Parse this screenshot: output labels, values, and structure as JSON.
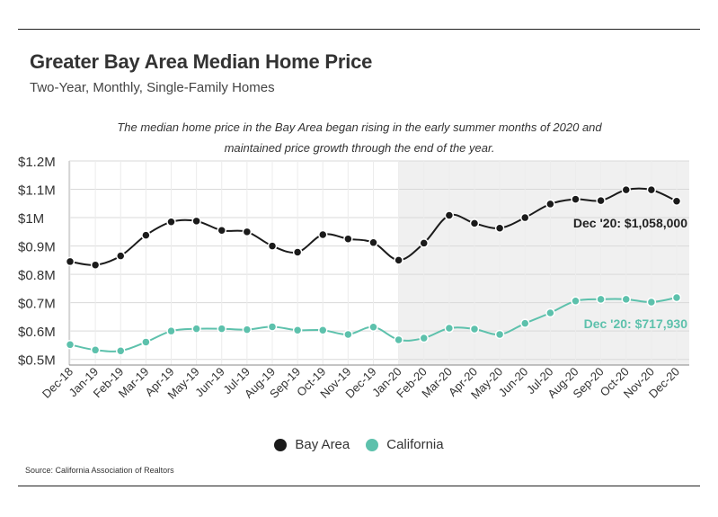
{
  "title": "Greater Bay Area Median Home Price",
  "subtitle": "Two-Year, Monthly, Single-Family Homes",
  "annotation_lines": [
    "The median home price in the Bay Area began rising in the early summer months of 2020 and",
    "maintained price growth through the end of the year."
  ],
  "source": "Source:  California Association of Realtors",
  "colors": {
    "bay_area": "#1b1b1b",
    "california": "#5dc1ac",
    "shade": "#f0f0f0",
    "grid": "#d9d9d9"
  },
  "chart_data": {
    "type": "line",
    "x": [
      "Dec-18",
      "Jan-19",
      "Feb-19",
      "Mar-19",
      "Apr-19",
      "May-19",
      "Jun-19",
      "Jul-19",
      "Aug-19",
      "Sep-19",
      "Oct-19",
      "Nov-19",
      "Dec-19",
      "Jan-20",
      "Feb-20",
      "Mar-20",
      "Apr-20",
      "May-20",
      "Jun-20",
      "Jul-20",
      "Aug-20",
      "Sep-20",
      "Oct-20",
      "Nov-20",
      "Dec-20"
    ],
    "series": [
      {
        "name": "Bay Area",
        "values": [
          845000,
          833000,
          865000,
          938000,
          985000,
          988000,
          955000,
          950000,
          900000,
          878000,
          940000,
          925000,
          912000,
          850000,
          910000,
          1008000,
          980000,
          963000,
          1000000,
          1048000,
          1065000,
          1060000,
          1098000,
          1098000,
          1058000
        ]
      },
      {
        "name": "California",
        "values": [
          552000,
          533000,
          530000,
          561000,
          600000,
          608000,
          608000,
          605000,
          615000,
          603000,
          603000,
          588000,
          614000,
          569000,
          575000,
          610000,
          607000,
          588000,
          627000,
          664000,
          706000,
          712000,
          712000,
          702000,
          717930
        ]
      }
    ],
    "y_ticks": [
      {
        "value": 1200000,
        "label": "$1.2M"
      },
      {
        "value": 1100000,
        "label": "$1.1M"
      },
      {
        "value": 1000000,
        "label": "$1M"
      },
      {
        "value": 900000,
        "label": "$0.9M"
      },
      {
        "value": 800000,
        "label": "$0.8M"
      },
      {
        "value": 700000,
        "label": "$0.7M"
      },
      {
        "value": 600000,
        "label": "$0.6M"
      },
      {
        "value": 500000,
        "label": "$0.5M"
      }
    ],
    "ylim": [
      480000,
      1200000
    ],
    "shaded_from": "Jan-20",
    "shaded_to": "Dec-20",
    "end_labels": [
      {
        "series": "Bay Area",
        "text": "Dec '20: $1,058,000"
      },
      {
        "series": "California",
        "text": "Dec '20: $717,930"
      }
    ],
    "legend": "bottom-center",
    "grid": true
  }
}
